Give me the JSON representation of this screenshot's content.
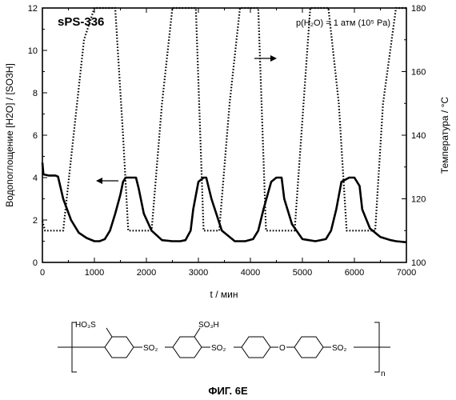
{
  "chart_data": {
    "type": "line",
    "title": "sPS-336",
    "annotation": "p(H₂O) = 1 атм (10⁵ Pa)",
    "xlabel": "t / мин",
    "ylabel_left": "Водопоглощение [H2O] / [SO3H]",
    "ylabel_right": "Температура / °C",
    "xlim": [
      0,
      7000
    ],
    "ylim_left": [
      0,
      12
    ],
    "ylim_right": [
      100,
      180
    ],
    "x_ticks": [
      "0",
      "1000",
      "2000",
      "3000",
      "4000",
      "5000",
      "6000",
      "7000"
    ],
    "y_left_ticks": [
      "0",
      "2",
      "4",
      "6",
      "8",
      "10",
      "12"
    ],
    "y_right_ticks": [
      "100",
      "120",
      "140",
      "160",
      "180"
    ],
    "grid": false,
    "series": [
      {
        "name": "Водопоглощение",
        "axis": "left",
        "style": "solid",
        "x": [
          0,
          20,
          120,
          250,
          300,
          400,
          550,
          700,
          850,
          1000,
          1100,
          1200,
          1300,
          1400,
          1500,
          1550,
          1600,
          1700,
          1800,
          1850,
          1950,
          2100,
          2300,
          2500,
          2650,
          2750,
          2850,
          2900,
          3000,
          3100,
          3150,
          3250,
          3450,
          3700,
          3900,
          4050,
          4150,
          4250,
          4400,
          4500,
          4600,
          4650,
          4800,
          5000,
          5250,
          5450,
          5550,
          5650,
          5750,
          5900,
          6000,
          6100,
          6150,
          6300,
          6500,
          6700,
          6800,
          7000
        ],
        "y": [
          4.7,
          4.15,
          4.1,
          4.1,
          4.05,
          3.0,
          2.0,
          1.4,
          1.15,
          1.0,
          1.0,
          1.1,
          1.5,
          2.3,
          3.2,
          3.8,
          4.0,
          4.0,
          4.0,
          3.5,
          2.3,
          1.5,
          1.05,
          1.0,
          1.0,
          1.05,
          1.5,
          2.5,
          3.8,
          4.0,
          4.0,
          3.0,
          1.5,
          1.0,
          1.0,
          1.1,
          1.5,
          2.5,
          3.8,
          4.0,
          4.0,
          3.0,
          1.8,
          1.1,
          1.0,
          1.1,
          1.5,
          2.5,
          3.8,
          4.0,
          4.0,
          3.6,
          2.5,
          1.6,
          1.2,
          1.05,
          1.0,
          0.95
        ]
      },
      {
        "name": "Температура",
        "axis": "right",
        "style": "dotted",
        "x": [
          0,
          50,
          250,
          400,
          600,
          800,
          1000,
          1200,
          1400,
          1550,
          1650,
          1900,
          2100,
          2300,
          2500,
          2700,
          2950,
          3100,
          3200,
          3400,
          3600,
          3800,
          4000,
          4150,
          4300,
          4550,
          4700,
          4850,
          5150,
          5250,
          5500,
          5700,
          5850,
          6050,
          6250,
          6400,
          6550,
          6800,
          6900,
          7000
        ],
        "y": [
          113,
          110,
          110,
          110,
          140,
          170,
          180,
          180,
          180,
          140,
          110,
          110,
          110,
          150,
          180,
          180,
          180,
          110,
          110,
          110,
          150,
          180,
          180,
          180,
          110,
          110,
          110,
          110,
          180,
          180,
          180,
          150,
          110,
          110,
          110,
          110,
          150,
          180,
          180,
          180
        ]
      }
    ],
    "arrows": [
      {
        "direction": "left",
        "target": "Водопоглощение"
      },
      {
        "direction": "right",
        "target": "Температура"
      }
    ]
  },
  "structure": {
    "labels": {
      "so3h_left": "HO₃S",
      "so3h_right": "SO₃H",
      "so2_1": "SO₂",
      "so2_2": "SO₂",
      "o": "O",
      "so2_3": "SO₂",
      "n": "n"
    }
  },
  "caption": "ФИГ. 6E"
}
